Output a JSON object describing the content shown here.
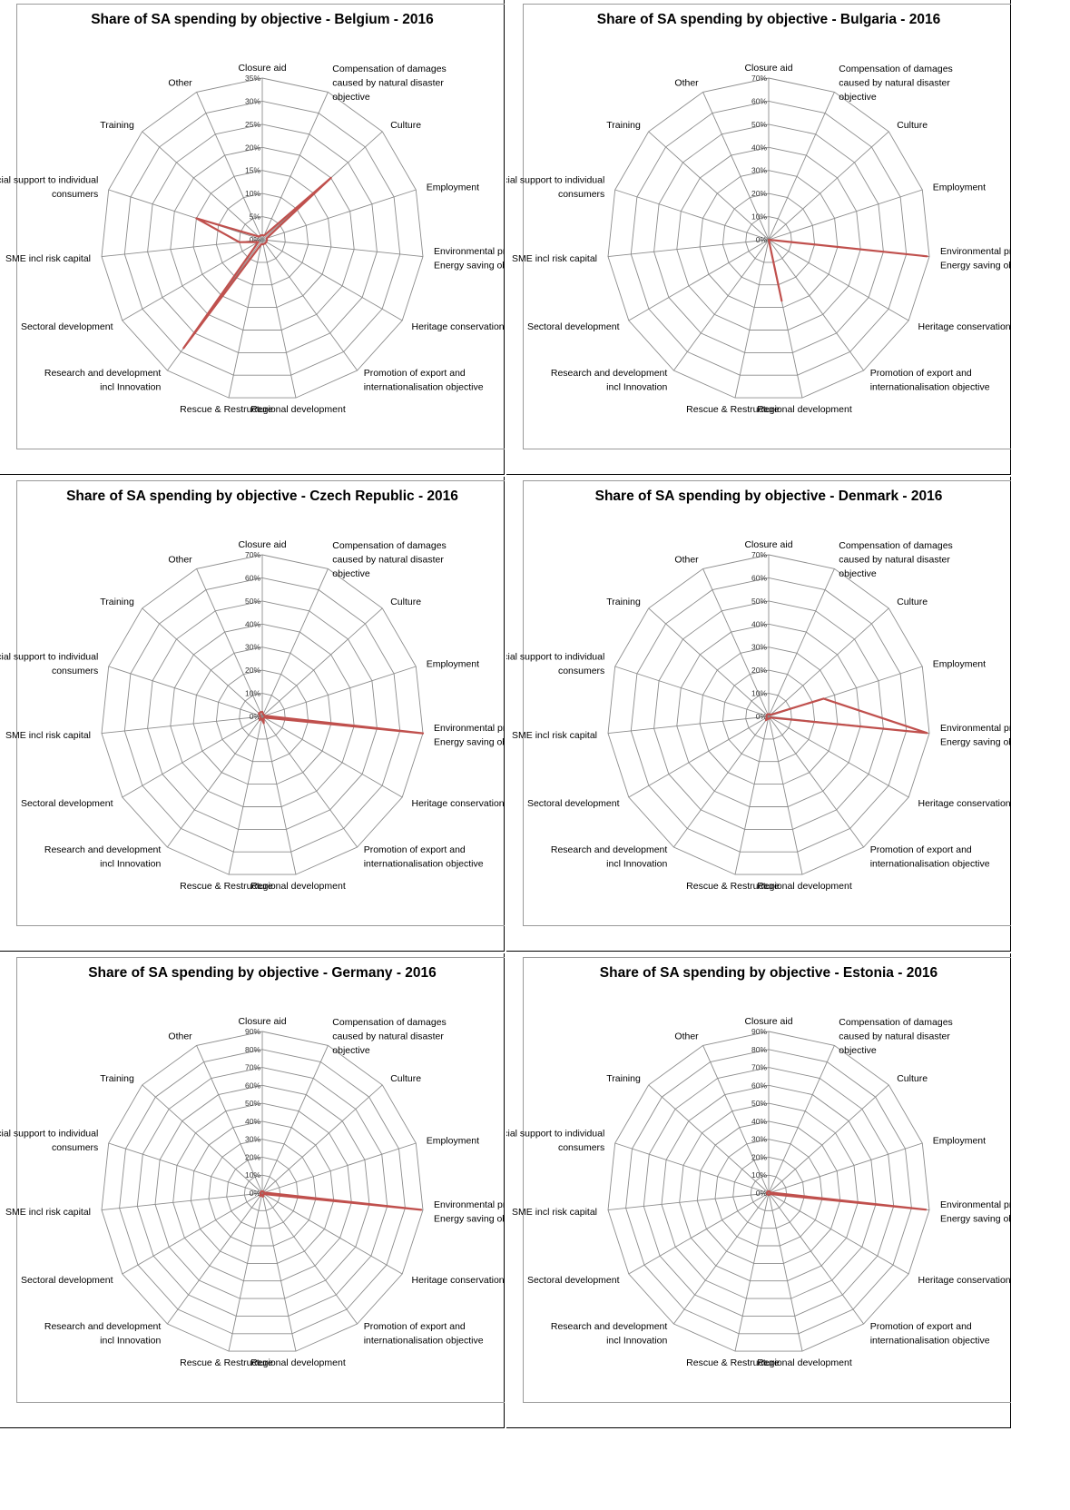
{
  "colors": {
    "series": "#c0504d",
    "grid": "#8c8c8c",
    "frame": "#999999"
  },
  "categories": [
    [
      "Closure aid"
    ],
    [
      "Compensation of damages",
      "caused by natural disaster",
      "objective"
    ],
    [
      "Culture"
    ],
    [
      "Employment"
    ],
    [
      "Environmental protection incl",
      "Energy saving objective"
    ],
    [
      "Heritage conservation"
    ],
    [
      "Promotion of export and",
      "internationalisation objective"
    ],
    [
      "Regional development"
    ],
    [
      "Rescue & Restructure"
    ],
    [
      "Research and development",
      "incl Innovation"
    ],
    [
      "Sectoral development"
    ],
    [
      "SME incl risk capital"
    ],
    [
      "Social support to individual",
      "consumers"
    ],
    [
      "Training"
    ],
    [
      "Other"
    ]
  ],
  "chart_data": [
    {
      "type": "radar",
      "title": "Share of SA spending by objective - Belgium - 2016",
      "ticks": [
        "0%",
        "5%",
        "10%",
        "15%",
        "20%",
        "25%",
        "30%",
        "35%"
      ],
      "rmax": 35,
      "values": [
        1,
        1,
        20,
        1,
        1,
        1,
        1,
        1,
        1,
        29,
        1,
        5,
        15,
        1,
        1
      ]
    },
    {
      "type": "radar",
      "title": "Share of SA spending by objective - Bulgaria - 2016",
      "ticks": [
        "0%",
        "10%",
        "20%",
        "30%",
        "40%",
        "50%",
        "60%",
        "70%"
      ],
      "rmax": 70,
      "values": [
        0,
        0,
        0,
        0,
        69,
        0,
        0,
        27,
        0,
        0,
        0,
        0,
        0,
        0,
        0
      ]
    },
    {
      "type": "radar",
      "title": "Share of SA spending by objective - Czech Republic - 2016",
      "ticks": [
        "0%",
        "10%",
        "20%",
        "30%",
        "40%",
        "50%",
        "60%",
        "70%"
      ],
      "rmax": 70,
      "values": [
        2,
        1,
        1,
        1,
        70,
        1,
        1,
        3,
        1,
        2,
        1,
        1,
        1,
        2,
        2
      ]
    },
    {
      "type": "radar",
      "title": "Share of SA spending by objective - Denmark - 2016",
      "ticks": [
        "0%",
        "10%",
        "20%",
        "30%",
        "40%",
        "50%",
        "60%",
        "70%"
      ],
      "rmax": 70,
      "values": [
        1,
        1,
        1,
        25,
        69,
        1,
        1,
        1,
        1,
        2,
        1,
        1,
        1,
        1,
        1
      ]
    },
    {
      "type": "radar",
      "title": "Share of SA spending by objective - Germany - 2016",
      "ticks": [
        "0%",
        "10%",
        "20%",
        "30%",
        "40%",
        "50%",
        "60%",
        "70%",
        "80%",
        "90%"
      ],
      "rmax": 90,
      "values": [
        1,
        1,
        1,
        1,
        89,
        1,
        1,
        2,
        1,
        2,
        1,
        1,
        1,
        1,
        1
      ]
    },
    {
      "type": "radar",
      "title": "Share of SA spending by objective - Estonia - 2016",
      "ticks": [
        "0%",
        "10%",
        "20%",
        "30%",
        "40%",
        "50%",
        "60%",
        "70%",
        "80%",
        "90%"
      ],
      "rmax": 90,
      "values": [
        1,
        1,
        1,
        1,
        88,
        1,
        1,
        1,
        1,
        1,
        1,
        1,
        1,
        1,
        1
      ]
    }
  ]
}
